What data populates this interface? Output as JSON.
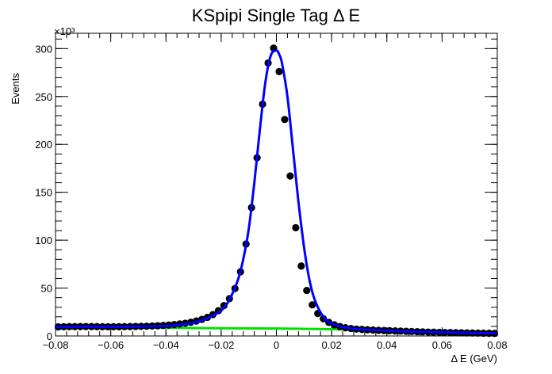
{
  "chart_data": {
    "type": "scatter",
    "title": "KSpipi Single Tag Δ E",
    "xlabel": "Δ E (GeV)",
    "ylabel": "Events",
    "y_multiplier_label": "×10³",
    "xlim": [
      -0.08,
      0.08
    ],
    "ylim": [
      0,
      316
    ],
    "x_ticks": [
      -0.08,
      -0.06,
      -0.04,
      -0.02,
      0,
      0.02,
      0.04,
      0.06,
      0.08
    ],
    "x_tick_labels": [
      "−0.08",
      "−0.06",
      "−0.04",
      "−0.02",
      "0",
      "0.02",
      "0.04",
      "0.06",
      "0.08"
    ],
    "y_ticks": [
      0,
      50,
      100,
      150,
      200,
      250,
      300
    ],
    "y_tick_labels": [
      "0",
      "50",
      "100",
      "150",
      "200",
      "250",
      "300"
    ],
    "grid": false,
    "series": [
      {
        "kind": "data-points",
        "color": "#000000",
        "x": [
          -0.079,
          -0.077,
          -0.075,
          -0.073,
          -0.071,
          -0.069,
          -0.067,
          -0.065,
          -0.063,
          -0.061,
          -0.059,
          -0.057,
          -0.055,
          -0.053,
          -0.051,
          -0.049,
          -0.047,
          -0.045,
          -0.043,
          -0.041,
          -0.039,
          -0.037,
          -0.035,
          -0.033,
          -0.031,
          -0.029,
          -0.027,
          -0.025,
          -0.023,
          -0.021,
          -0.019,
          -0.017,
          -0.015,
          -0.013,
          -0.011,
          -0.009,
          -0.007,
          -0.005,
          -0.003,
          -0.001,
          0.001,
          0.003,
          0.005,
          0.007,
          0.009,
          0.011,
          0.013,
          0.015,
          0.017,
          0.019,
          0.021,
          0.023,
          0.025,
          0.027,
          0.029,
          0.031,
          0.033,
          0.035,
          0.037,
          0.039,
          0.041,
          0.043,
          0.045,
          0.047,
          0.049,
          0.051,
          0.053,
          0.055,
          0.057,
          0.059,
          0.061,
          0.063,
          0.065,
          0.067,
          0.069,
          0.071,
          0.073,
          0.075,
          0.077,
          0.079
        ],
        "values": [
          9.5,
          9.6,
          9.7,
          9.7,
          9.8,
          9.8,
          9.8,
          9.7,
          9.6,
          9.6,
          9.6,
          9.6,
          9.7,
          9.8,
          9.9,
          10.0,
          10.2,
          10.4,
          10.7,
          11.0,
          11.4,
          11.9,
          12.5,
          13.3,
          14.3,
          15.6,
          17.3,
          19.4,
          22.3,
          26.4,
          31.7,
          39.0,
          49.5,
          67.0,
          96.0,
          134.0,
          186.0,
          242.0,
          285.0,
          300.5,
          276.0,
          226.0,
          167.0,
          113.0,
          73.0,
          47.5,
          32.5,
          23.5,
          18.0,
          14.2,
          11.6,
          9.8,
          8.6,
          7.8,
          7.2,
          6.8,
          6.5,
          6.2,
          5.9,
          5.7,
          5.5,
          5.3,
          5.1,
          4.9,
          4.7,
          4.5,
          4.3,
          4.1,
          3.9,
          3.7,
          3.6,
          3.5,
          3.4,
          3.3,
          3.2,
          3.1,
          3.0,
          2.9,
          2.8,
          2.7
        ]
      },
      {
        "kind": "total-fit",
        "color": "#0000ff",
        "x": [
          -0.08,
          -0.07,
          -0.06,
          -0.05,
          -0.04,
          -0.035,
          -0.03,
          -0.025,
          -0.02,
          -0.017,
          -0.014,
          -0.012,
          -0.01,
          -0.008,
          -0.006,
          -0.004,
          -0.002,
          0.0,
          0.001,
          0.002,
          0.004,
          0.006,
          0.008,
          0.01,
          0.012,
          0.014,
          0.017,
          0.02,
          0.025,
          0.03,
          0.04,
          0.05,
          0.06,
          0.07,
          0.08
        ],
        "values": [
          9.5,
          9.7,
          9.6,
          9.8,
          10.4,
          11.6,
          13.9,
          18.5,
          26.5,
          38.0,
          58.0,
          80.0,
          112.0,
          160.0,
          215.0,
          265.0,
          293.0,
          298.0,
          294.0,
          285.0,
          250.0,
          195.0,
          140.0,
          93.0,
          58.0,
          37.0,
          20.0,
          13.0,
          8.8,
          7.0,
          5.5,
          4.5,
          3.8,
          3.2,
          2.7
        ]
      },
      {
        "kind": "background",
        "color": "#00e000",
        "x": [
          -0.08,
          -0.06,
          -0.04,
          -0.02,
          0.0,
          0.02,
          0.04,
          0.06,
          0.08
        ],
        "values": [
          9.0,
          8.8,
          8.5,
          8.0,
          7.8,
          7.0,
          6.2,
          5.0,
          3.8
        ]
      }
    ]
  }
}
